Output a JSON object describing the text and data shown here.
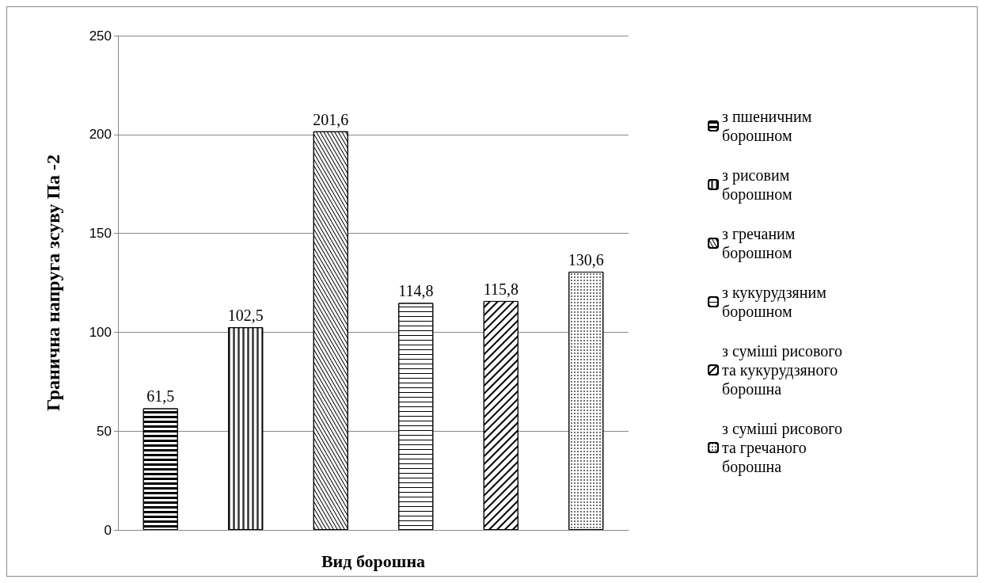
{
  "chart_data": {
    "type": "bar",
    "xlabel": "Вид борошна",
    "ylabel": "Гранична напруга зсуву Па -2",
    "categories": [
      null,
      null,
      null,
      null,
      null,
      null
    ],
    "series": [
      {
        "name": "з пшеничним борошном",
        "color": "#000000",
        "values": [
          61.5,
          null,
          null,
          null,
          null,
          null
        ],
        "value_labels": [
          "61,5",
          null,
          null,
          null,
          null,
          null
        ]
      },
      {
        "name": "з рисовим борошном",
        "color": "#000000",
        "values": [
          null,
          102.5,
          null,
          null,
          null,
          null
        ],
        "value_labels": [
          null,
          "102,5",
          null,
          null,
          null,
          null
        ]
      },
      {
        "name": "з гречаним борошном",
        "color": "#000000",
        "values": [
          null,
          null,
          201.6,
          null,
          null,
          null
        ],
        "value_labels": [
          null,
          null,
          "201,6",
          null,
          null,
          null
        ]
      },
      {
        "name": "з кукурудзяним борошном",
        "color": "#000000",
        "values": [
          null,
          null,
          null,
          114.8,
          null,
          null
        ],
        "value_labels": [
          null,
          null,
          null,
          "114,8",
          null,
          null
        ]
      },
      {
        "name": "з суміші рисового та кукурудзяного борошна",
        "color": "#000000",
        "values": [
          null,
          null,
          null,
          null,
          115.8,
          null
        ],
        "value_labels": [
          null,
          null,
          null,
          null,
          "115,8",
          null
        ]
      },
      {
        "name": "з суміші рисового та гречаного борошна",
        "color": "#000000",
        "values": [
          null,
          null,
          null,
          null,
          null,
          130.6
        ],
        "value_labels": [
          null,
          null,
          null,
          null,
          null,
          "130,6"
        ]
      }
    ],
    "ylim": [
      0,
      250
    ],
    "yticks": [
      0,
      50,
      100,
      150,
      200,
      250
    ],
    "grid": "y",
    "legend": "right"
  }
}
